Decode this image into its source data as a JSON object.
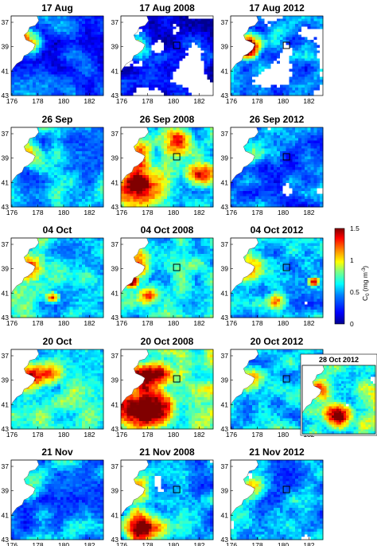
{
  "panels": [
    {
      "title": "17 Aug",
      "base": 0.28,
      "clouds": 0.0,
      "coast": 1.2,
      "blooms": [
        [
          0.05,
          0.22,
          0.18,
          0.9
        ]
      ]
    },
    {
      "title": "17 Aug 2008",
      "base": 0.2,
      "clouds": 0.55,
      "coast": 1.0,
      "blooms": [
        [
          0.08,
          0.35,
          0.12,
          0.8
        ]
      ]
    },
    {
      "title": "17 Aug 2012",
      "base": 0.42,
      "clouds": 0.42,
      "coast": 1.1,
      "blooms": [
        [
          0.18,
          0.45,
          0.16,
          0.9
        ]
      ]
    },
    {
      "title": "26 Sep",
      "base": 0.52,
      "clouds": 0.0,
      "coast": 0.7,
      "blooms": []
    },
    {
      "title": "26 Sep 2008",
      "base": 0.6,
      "clouds": 0.05,
      "coast": 1.2,
      "blooms": [
        [
          0.2,
          0.75,
          0.35,
          1.2
        ],
        [
          0.6,
          0.15,
          0.25,
          1.0
        ],
        [
          0.85,
          0.6,
          0.2,
          1.0
        ]
      ]
    },
    {
      "title": "26 Sep 2012",
      "base": 0.4,
      "clouds": 0.3,
      "coast": 0.8,
      "blooms": []
    },
    {
      "title": "04 Oct",
      "base": 0.62,
      "clouds": 0.0,
      "coast": 0.8,
      "blooms": [
        [
          0.45,
          0.75,
          0.1,
          0.9
        ]
      ]
    },
    {
      "title": "04 Oct 2008",
      "base": 0.62,
      "clouds": 0.12,
      "coast": 1.0,
      "blooms": [
        [
          0.12,
          0.55,
          0.1,
          1.2
        ],
        [
          0.3,
          0.75,
          0.15,
          0.7
        ]
      ]
    },
    {
      "title": "04 Oct 2012",
      "base": 0.55,
      "clouds": 0.14,
      "coast": 0.8,
      "blooms": [
        [
          0.9,
          0.55,
          0.08,
          1.2
        ],
        [
          0.5,
          0.8,
          0.15,
          0.7
        ]
      ]
    },
    {
      "title": "20 Oct",
      "base": 0.72,
      "clouds": 0.0,
      "coast": 0.8,
      "blooms": [
        [
          0.4,
          0.3,
          0.2,
          0.6
        ]
      ]
    },
    {
      "title": "20 Oct 2008",
      "base": 0.8,
      "clouds": 0.1,
      "coast": 1.2,
      "blooms": [
        [
          0.25,
          0.75,
          0.35,
          1.2
        ],
        [
          0.4,
          0.3,
          0.2,
          1.0
        ]
      ]
    },
    {
      "title": "20 Oct 2012",
      "base": 0.55,
      "clouds": 0.1,
      "coast": 0.8,
      "blooms": []
    },
    {
      "title": "21 Nov",
      "base": 0.45,
      "clouds": 0.0,
      "coast": 0.7,
      "blooms": [
        [
          0.5,
          0.1,
          0.3,
          0.1
        ]
      ]
    },
    {
      "title": "21 Nov 2008",
      "base": 0.5,
      "clouds": 0.15,
      "coast": 0.8,
      "blooms": [
        [
          0.25,
          0.85,
          0.3,
          1.2
        ]
      ]
    },
    {
      "title": "21 Nov 2012",
      "base": 0.5,
      "clouds": 0.15,
      "coast": 0.8,
      "blooms": []
    }
  ],
  "axes": {
    "x_ticks": [
      "176",
      "178",
      "180",
      "182"
    ],
    "y_ticks": [
      "37",
      "39",
      "41",
      "43"
    ]
  },
  "colorbar": {
    "label": "C",
    "label_sub": "0",
    "label_unit": "(mg m",
    "label_unit_sup": "-3",
    "label_close": ")",
    "ticks": [
      "1.5",
      "1",
      "0.5",
      "0"
    ],
    "colors": [
      "#00008f",
      "#0000ff",
      "#0080ff",
      "#00ffff",
      "#80ff80",
      "#ffff00",
      "#ff8000",
      "#ff0000",
      "#800000"
    ]
  },
  "inset": {
    "title": "28 Oct 2012",
    "base": 0.7,
    "clouds": 0.35,
    "blooms": [
      [
        0.5,
        0.75,
        0.25,
        1.2
      ]
    ]
  }
}
